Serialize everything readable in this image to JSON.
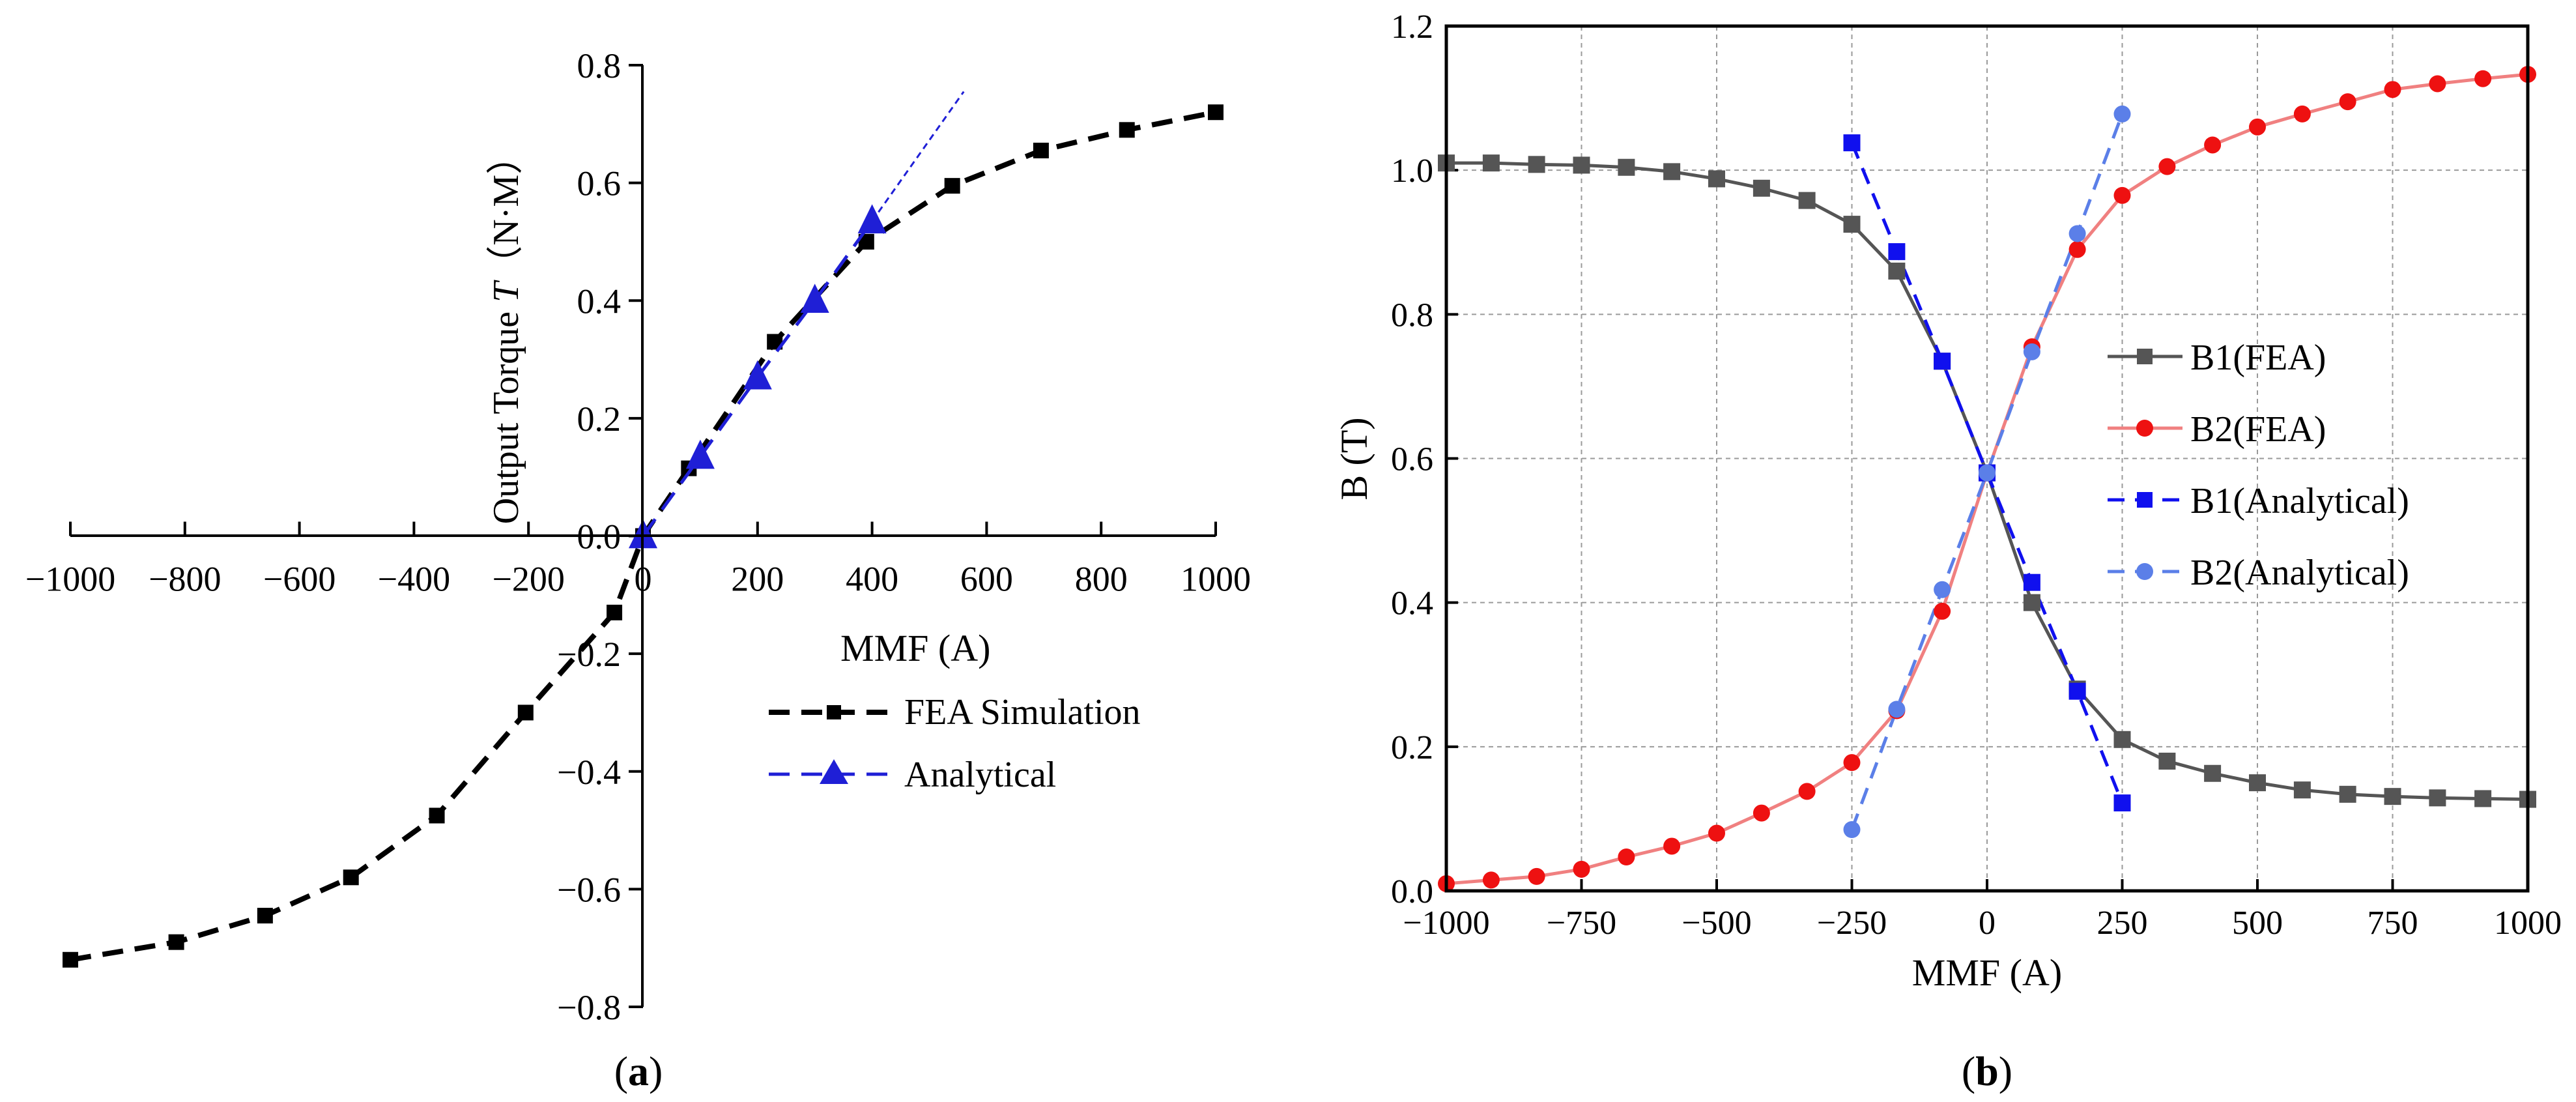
{
  "chart_data": [
    {
      "panel_label": "(a)",
      "panel_letter": "a",
      "type": "line",
      "title": "",
      "xlabel": "MMF (A)",
      "ylabel_prefix": "Output Torque ",
      "ylabel_var": "T",
      "ylabel_unit": "（N·M）",
      "xlim": [
        -1000,
        1000
      ],
      "ylim": [
        -0.8,
        0.8
      ],
      "xticks": [
        -1000,
        -800,
        -600,
        -400,
        -200,
        0,
        200,
        400,
        600,
        800,
        1000
      ],
      "xtick_labels": [
        "−1000",
        "−800",
        "−600",
        "−400",
        "−200",
        "0",
        "200",
        "400",
        "600",
        "800",
        "1000"
      ],
      "yticks": [
        -0.8,
        -0.6,
        -0.4,
        -0.2,
        0.0,
        0.2,
        0.4,
        0.6,
        0.8
      ],
      "ytick_labels": [
        "−0.8",
        "−0.6",
        "−0.4",
        "−0.2",
        "0.0",
        "0.2",
        "0.4",
        "0.6",
        "0.8"
      ],
      "grid": false,
      "legend_position": "lower-right",
      "series": [
        {
          "name": "FEA Simulation",
          "color": "#000000",
          "marker": "square",
          "dash": "dashed",
          "x": [
            -1000,
            -815,
            -660,
            -510,
            -360,
            -205,
            -50,
            0,
            80,
            230,
            390,
            540,
            695,
            845,
            1000
          ],
          "y": [
            -0.72,
            -0.69,
            -0.645,
            -0.58,
            -0.475,
            -0.3,
            -0.13,
            0.0,
            0.115,
            0.33,
            0.5,
            0.595,
            0.655,
            0.69,
            0.72
          ]
        },
        {
          "name": "Analytical",
          "color": "#1f1fd6",
          "marker": "triangle",
          "dash": "dashed",
          "x": [
            0,
            100,
            200,
            300,
            400
          ],
          "y": [
            0.0,
            0.135,
            0.27,
            0.4,
            0.535
          ],
          "extension_x": [
            400,
            560
          ],
          "extension_y": [
            0.535,
            0.755
          ]
        }
      ]
    },
    {
      "panel_label": "(b)",
      "panel_letter": "b",
      "type": "line",
      "title": "",
      "xlabel": "MMF (A)",
      "ylabel": "B (T)",
      "xlim": [
        -1000,
        1000
      ],
      "ylim": [
        0.0,
        1.2
      ],
      "xticks": [
        -1000,
        -750,
        -500,
        -250,
        0,
        250,
        500,
        750,
        1000
      ],
      "xtick_labels": [
        "−1000",
        "−750",
        "−500",
        "−250",
        "0",
        "250",
        "500",
        "750",
        "1000"
      ],
      "yticks": [
        0.0,
        0.2,
        0.4,
        0.6,
        0.8,
        1.0,
        1.2
      ],
      "ytick_labels": [
        "0.0",
        "0.2",
        "0.4",
        "0.6",
        "0.8",
        "1.0",
        "1.2"
      ],
      "grid": true,
      "legend_position": "center-right",
      "series": [
        {
          "name": "B1(FEA)",
          "color": "#555555",
          "marker": "square",
          "dash": "solid",
          "x": [
            -1000,
            -917,
            -833,
            -750,
            -667,
            -583,
            -500,
            -417,
            -333,
            -250,
            -167,
            -83,
            0,
            83,
            167,
            250,
            333,
            417,
            500,
            583,
            667,
            750,
            833,
            917,
            1000
          ],
          "y": [
            1.01,
            1.01,
            1.008,
            1.007,
            1.004,
            0.998,
            0.988,
            0.975,
            0.958,
            0.925,
            0.86,
            0.735,
            0.58,
            0.4,
            0.28,
            0.21,
            0.18,
            0.163,
            0.15,
            0.14,
            0.134,
            0.131,
            0.129,
            0.128,
            0.127
          ]
        },
        {
          "name": "B2(FEA)",
          "color": "#ee1111",
          "line_color": "#f08080",
          "marker": "circle",
          "dash": "solid",
          "x": [
            -1000,
            -917,
            -833,
            -750,
            -667,
            -583,
            -500,
            -417,
            -333,
            -250,
            -167,
            -83,
            0,
            83,
            167,
            250,
            333,
            417,
            500,
            583,
            667,
            750,
            833,
            917,
            1000
          ],
          "y": [
            0.01,
            0.015,
            0.02,
            0.03,
            0.047,
            0.062,
            0.08,
            0.108,
            0.138,
            0.178,
            0.25,
            0.388,
            0.58,
            0.755,
            0.89,
            0.965,
            1.005,
            1.035,
            1.06,
            1.078,
            1.095,
            1.112,
            1.12,
            1.127,
            1.133
          ]
        },
        {
          "name": "B1(Analytical)",
          "color": "#1010ee",
          "marker": "square",
          "dash": "dashed",
          "x": [
            -250,
            -167,
            -83,
            0,
            83,
            167,
            250
          ],
          "y": [
            1.038,
            0.887,
            0.735,
            0.58,
            0.428,
            0.277,
            0.122
          ]
        },
        {
          "name": "B2(Analytical)",
          "color": "#5b7fe8",
          "marker": "circle",
          "dash": "dashed",
          "x": [
            -250,
            -167,
            -83,
            0,
            83,
            167,
            250
          ],
          "y": [
            0.085,
            0.252,
            0.418,
            0.58,
            0.748,
            0.912,
            1.078
          ]
        }
      ]
    }
  ]
}
